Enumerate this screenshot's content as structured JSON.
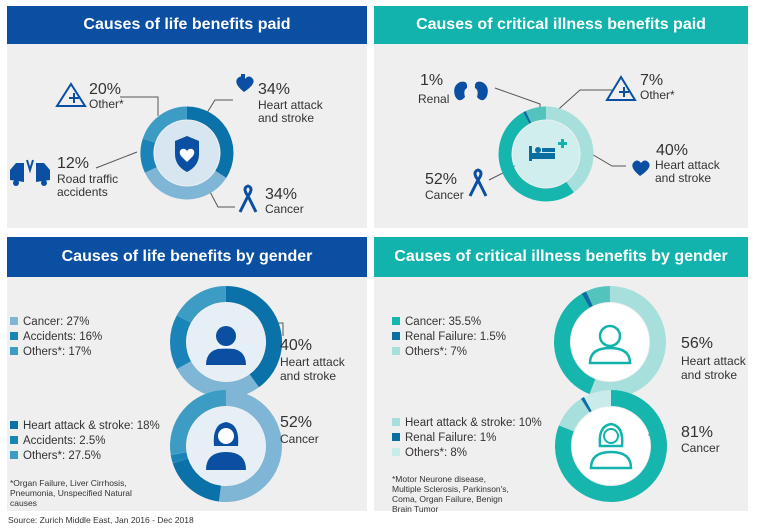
{
  "colors": {
    "navy": "#0a4fa2",
    "teal": "#12b3ad",
    "life_heart": "#0a72a8",
    "life_cancer": "#7fb5d5",
    "life_accidents": "#1a84b8",
    "life_other": "#3d9cc4",
    "ci_heart": "#a6dfdc",
    "ci_cancer": "#16b5ae",
    "ci_renal": "#0a6fa0",
    "ci_other": "#52c4bd",
    "icon_blue": "#0a4fa2"
  },
  "chart_data": [
    {
      "type": "pie",
      "title": "Causes of life benefits paid",
      "labels": [
        "Heart attack and stroke",
        "Cancer",
        "Road traffic accidents",
        "Other*"
      ],
      "values": [
        34,
        34,
        12,
        20
      ],
      "icons": [
        "heart-icon",
        "ribbon-icon",
        "car-crash-icon",
        "warning-icon"
      ]
    },
    {
      "type": "pie",
      "title": "Causes of critical illness benefits paid",
      "labels": [
        "Heart attack and stroke",
        "Cancer",
        "Renal",
        "Other*"
      ],
      "values": [
        40,
        52,
        1,
        7
      ],
      "icons": [
        "heart-icon",
        "ribbon-icon",
        "kidney-icon",
        "warning-icon"
      ]
    },
    {
      "type": "pie",
      "title": "Causes of life benefits by gender",
      "series": [
        {
          "name": "male",
          "labels": [
            "Heart attack and stroke",
            "Cancer",
            "Accidents",
            "Others*"
          ],
          "values": [
            40,
            27,
            16,
            17
          ]
        },
        {
          "name": "female",
          "labels": [
            "Cancer",
            "Heart attack & stroke",
            "Accidents",
            "Others*"
          ],
          "values": [
            52,
            18,
            2.5,
            27.5
          ]
        }
      ]
    },
    {
      "type": "pie",
      "title": "Causes of critical illness benefits by gender",
      "series": [
        {
          "name": "male",
          "labels": [
            "Heart attack and stroke",
            "Cancer",
            "Renal Failure",
            "Others*"
          ],
          "values": [
            56,
            35.5,
            1.5,
            7
          ]
        },
        {
          "name": "female",
          "labels": [
            "Cancer",
            "Heart attack & stroke",
            "Renal Failure",
            "Others*"
          ],
          "values": [
            81,
            10,
            1,
            8
          ]
        }
      ]
    }
  ],
  "text": {
    "title_life": "Causes of life benefits paid",
    "title_ci": "Causes of critical illness benefits paid",
    "title_life_gender": "Causes of life benefits by gender",
    "title_ci_gender": "Causes of critical illness benefits by gender",
    "life": {
      "other_pct": "20%",
      "other_label": "Other*",
      "heart_pct": "34%",
      "heart_label1": "Heart attack",
      "heart_label2": "and stroke",
      "road_pct": "12%",
      "road_label1": "Road traffic",
      "road_label2": "accidents",
      "cancer_pct": "34%",
      "cancer_label": "Cancer"
    },
    "ci": {
      "renal_pct": "1%",
      "renal_label": "Renal",
      "other_pct": "7%",
      "other_label": "Other*",
      "heart_pct": "40%",
      "heart_label1": "Heart attack",
      "heart_label2": "and stroke",
      "cancer_pct": "52%",
      "cancer_label": "Cancer"
    },
    "life_gender": {
      "male_legend": [
        "Cancer: 27%",
        "Accidents: 16%",
        "Others*: 17%"
      ],
      "male_pct": "40%",
      "male_label1": "Heart attack",
      "male_label2": "and stroke",
      "female_legend": [
        "Heart attack & stroke: 18%",
        "Accidents: 2.5%",
        "Others*: 27.5%"
      ],
      "female_pct": "52%",
      "female_label": "Cancer",
      "note": [
        "*Organ Failure, Liver Cirrhosis,",
        "Pneumonia, Unspecified Natural",
        "causes"
      ]
    },
    "ci_gender": {
      "male_legend": [
        "Cancer: 35.5%",
        "Renal Failure: 1.5%",
        "Others*: 7%"
      ],
      "male_pct": "56%",
      "male_label1": "Heart attack",
      "male_label2": "and stroke",
      "female_legend": [
        "Heart attack & stroke: 10%",
        "Renal Failure: 1%",
        "Others*: 8%"
      ],
      "female_pct": "81%",
      "female_label": "Cancer",
      "note": [
        "*Motor Neurone disease,",
        "Multiple Sclerosis, Parkinson's,",
        "Coma, Organ Failure, Benign",
        "Brain Tumor"
      ]
    },
    "source": "Source: Zurich Middle East, Jan 2016 - Dec 2018"
  }
}
